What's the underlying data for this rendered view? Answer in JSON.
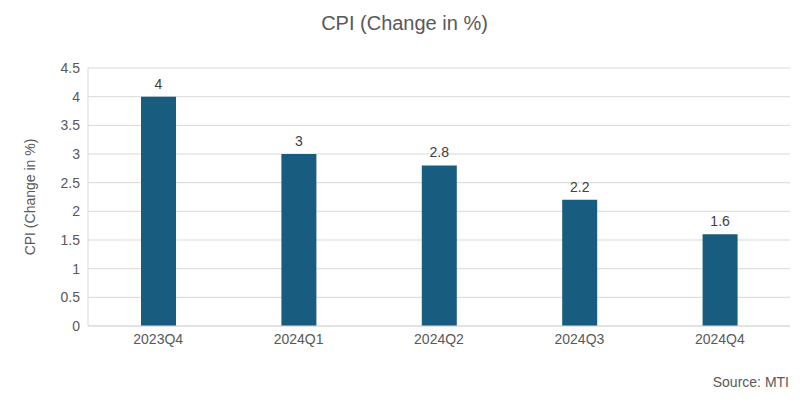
{
  "chart_data": {
    "type": "bar",
    "title": "CPI (Change in %)",
    "ylabel": "CPI (Change in %)",
    "categories": [
      "2023Q4",
      "2024Q1",
      "2024Q2",
      "2024Q3",
      "2024Q4"
    ],
    "values": [
      4,
      3,
      2.8,
      2.2,
      1.6
    ],
    "color": "#185c80",
    "ylim": [
      0,
      4.5
    ],
    "yticks": [
      0,
      0.5,
      1,
      1.5,
      2,
      2.5,
      3,
      3.5,
      4,
      4.5
    ],
    "grid": true,
    "data_labels": true,
    "annotations": [
      "Source: MTI"
    ]
  }
}
